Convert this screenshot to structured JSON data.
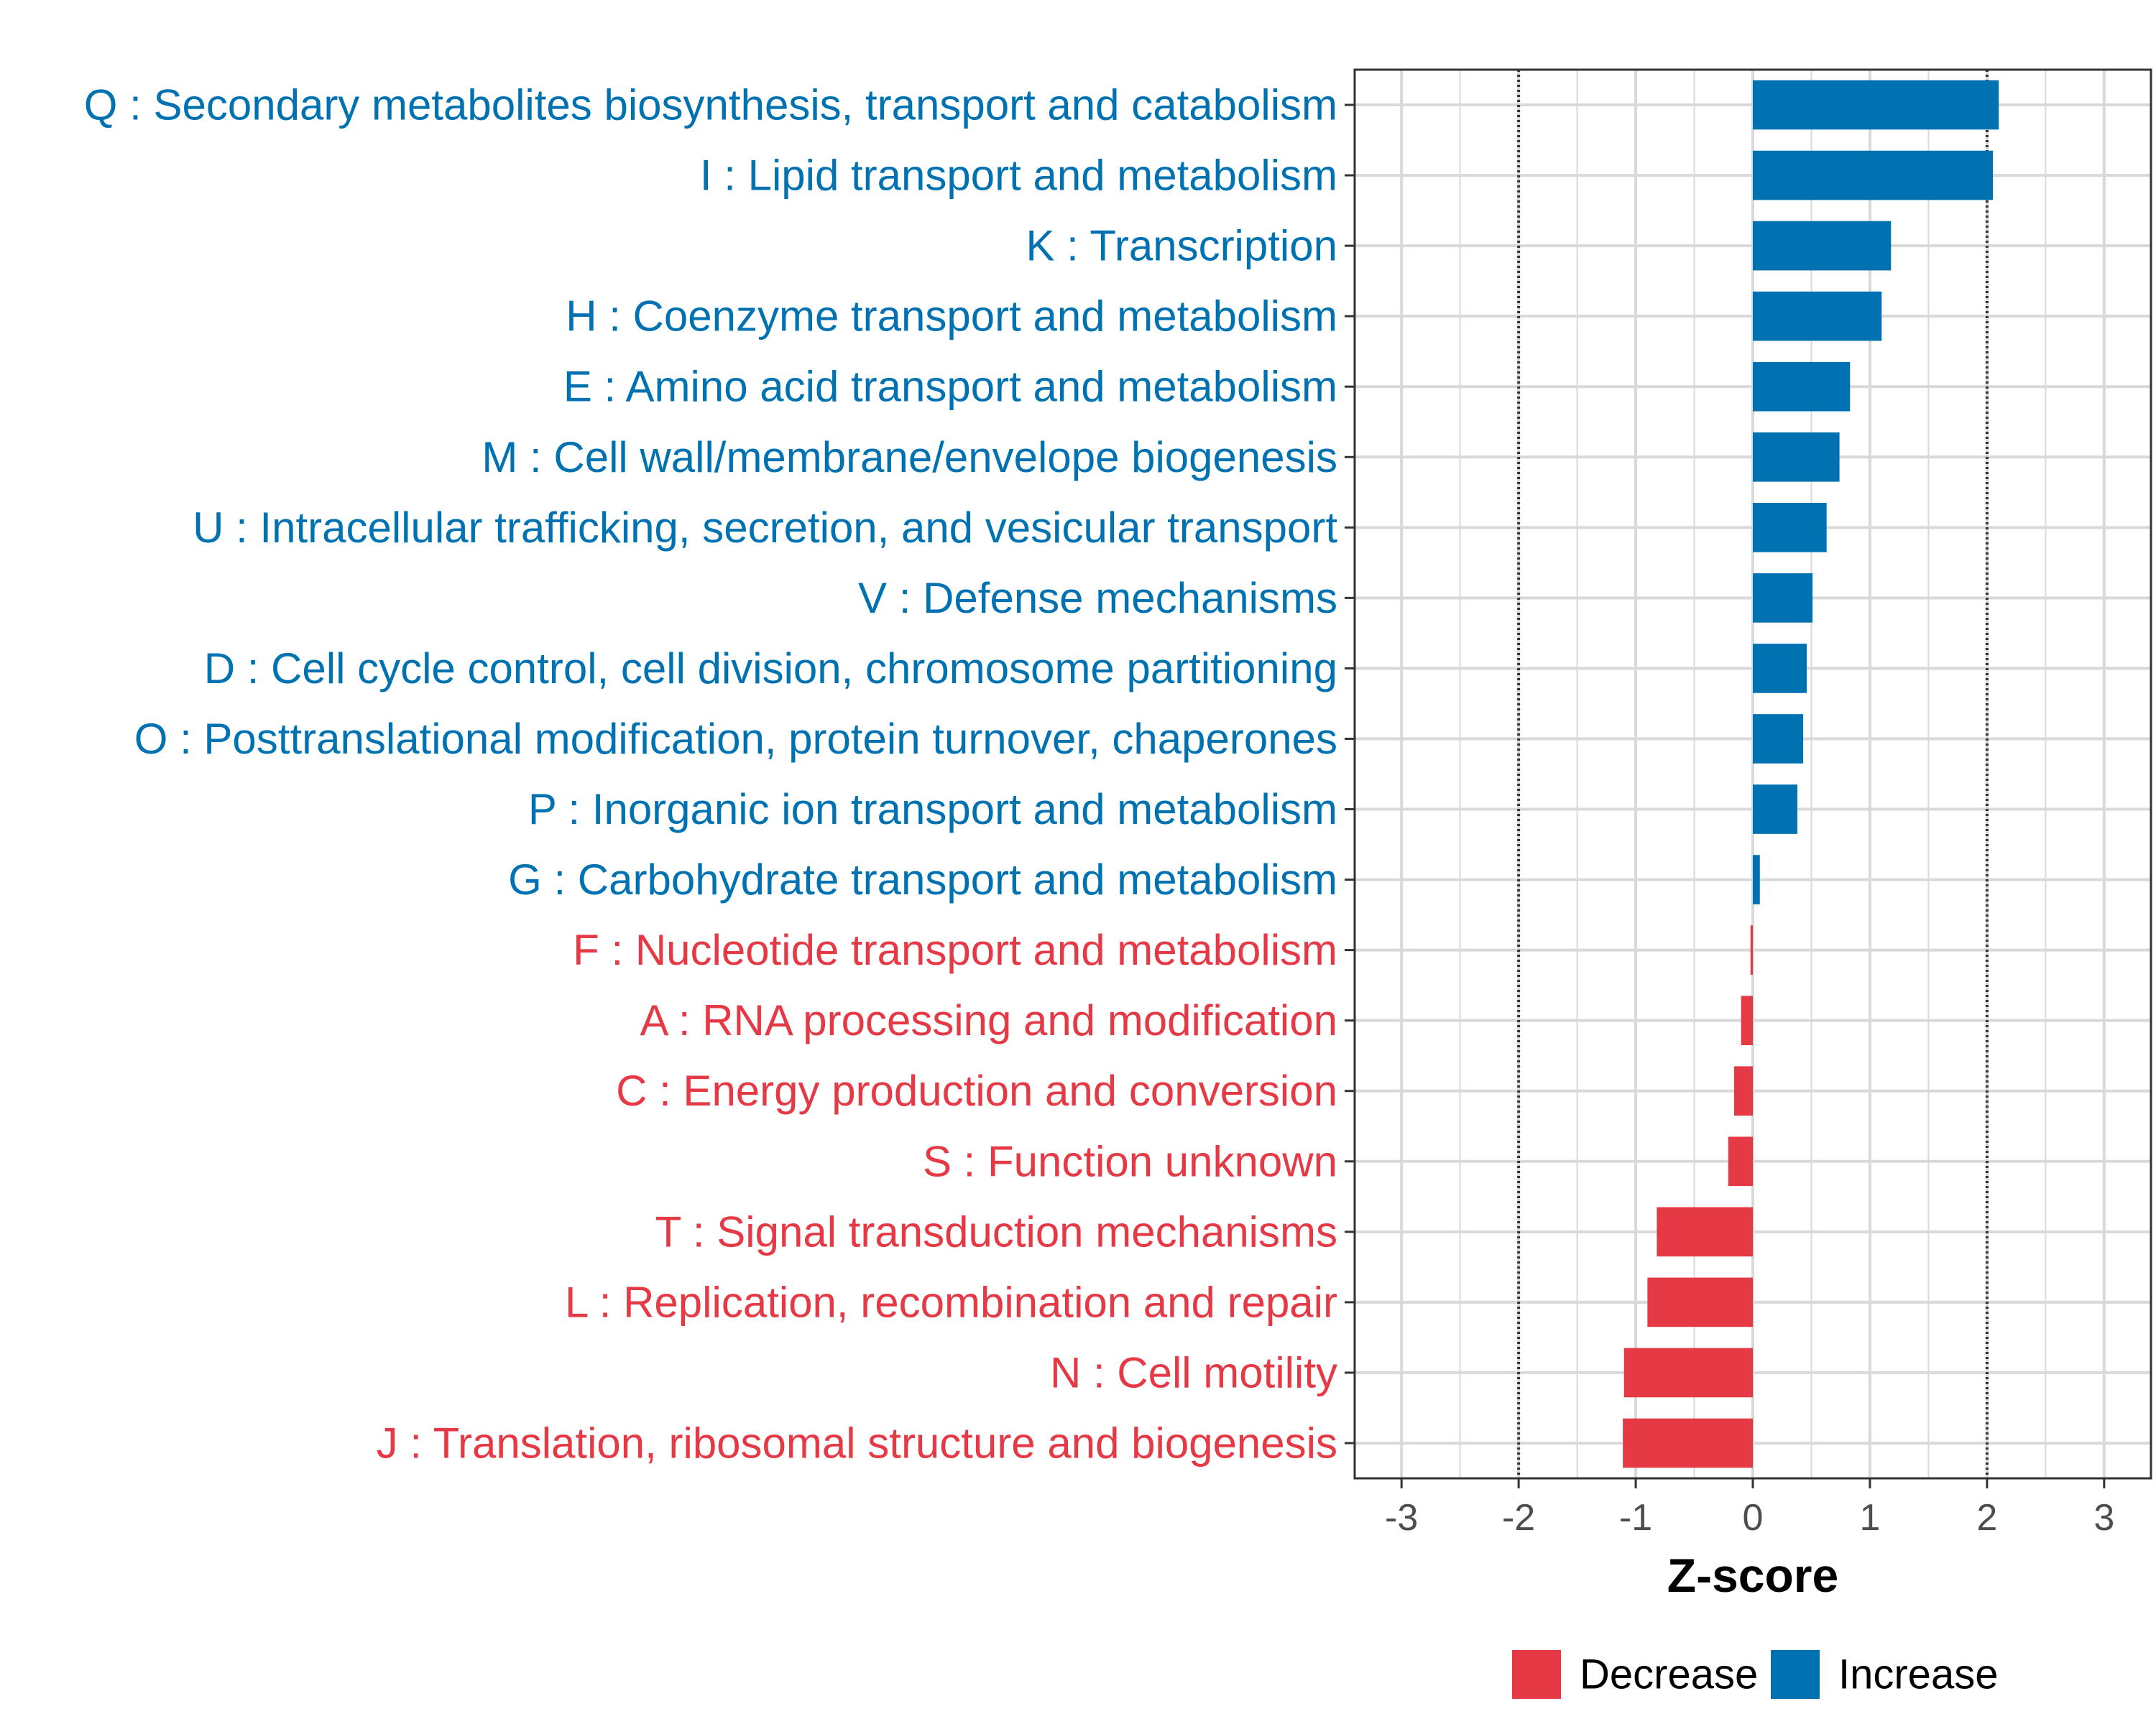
{
  "chart_data": {
    "type": "bar",
    "orientation": "horizontal",
    "title": "",
    "xlabel": "Z-score",
    "ylabel": "",
    "xlim": [
      -3.4,
      3.4
    ],
    "x_ticks": [
      -3,
      -2,
      -1,
      0,
      1,
      2,
      3
    ],
    "x_tick_labels": [
      "-3",
      "-2",
      "-1",
      "0",
      "1",
      "2",
      "3"
    ],
    "reference_lines": [
      -2,
      2
    ],
    "grid": true,
    "categories": [
      "Q : Secondary metabolites biosynthesis, transport and catabolism",
      "I : Lipid transport and metabolism",
      "K : Transcription",
      "H : Coenzyme transport and metabolism",
      "E : Amino acid transport and metabolism",
      "M : Cell wall/membrane/envelope biogenesis",
      "U : Intracellular trafficking, secretion, and vesicular transport",
      "V : Defense mechanisms",
      "D : Cell cycle control, cell division, chromosome partitioning",
      "O : Posttranslational modification, protein turnover, chaperones",
      "P : Inorganic ion transport and metabolism",
      "G : Carbohydrate transport and metabolism",
      "F : Nucleotide transport and metabolism",
      "A : RNA processing and modification",
      "C : Energy production and conversion",
      "S : Function unknown",
      "T : Signal transduction mechanisms",
      "L : Replication, recombination and repair",
      "N : Cell motility",
      "J : Translation, ribosomal structure and biogenesis"
    ],
    "values": [
      2.1,
      2.05,
      1.18,
      1.1,
      0.83,
      0.74,
      0.63,
      0.51,
      0.46,
      0.43,
      0.38,
      0.06,
      -0.02,
      -0.1,
      -0.16,
      -0.21,
      -0.82,
      -0.9,
      -1.1,
      -1.11
    ],
    "groups": [
      "Increase",
      "Increase",
      "Increase",
      "Increase",
      "Increase",
      "Increase",
      "Increase",
      "Increase",
      "Increase",
      "Increase",
      "Increase",
      "Increase",
      "Decrease",
      "Decrease",
      "Decrease",
      "Decrease",
      "Decrease",
      "Decrease",
      "Decrease",
      "Decrease"
    ],
    "legend": {
      "position": "bottom",
      "entries": [
        {
          "label": "Decrease",
          "color": "#e63946"
        },
        {
          "label": "Increase",
          "color": "#0072b2"
        }
      ]
    },
    "colors": {
      "Increase": "#0072b2",
      "Decrease": "#e63946",
      "grid": "#d9d9d9",
      "panel_border": "#333333",
      "reference_line": "#333333",
      "tick_text": "#4d4d4d"
    }
  }
}
